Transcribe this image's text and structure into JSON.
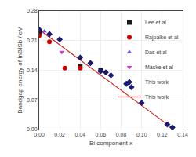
{
  "chart_data": {
    "type": "scatter",
    "xlabel": "Bi component x",
    "ylabel": "Bandgap energy of InBISb / eV",
    "series": [
      {
        "name": "Lee et al",
        "type": "scatter",
        "marker": "square",
        "color": "#1a1a1a",
        "x": [
          0.0,
          0.04,
          0.06
        ],
        "values": [
          0.23,
          0.15,
          0.14
        ]
      },
      {
        "name": "Rajpalke et al",
        "type": "scatter",
        "marker": "circle",
        "color": "#cc0000",
        "x": [
          0.0,
          0.01,
          0.025,
          0.04
        ],
        "values": [
          0.222,
          0.207,
          0.145,
          0.145
        ]
      },
      {
        "name": "Das et al",
        "type": "scatter",
        "marker": "triangle-up",
        "color": "#7755cc",
        "x": [
          0.005,
          0.01
        ],
        "values": [
          0.232,
          0.228
        ]
      },
      {
        "name": "Maske et al",
        "type": "scatter",
        "marker": "triangle-down",
        "color": "#cc44cc",
        "x": [
          0.022
        ],
        "values": [
          0.183
        ]
      },
      {
        "name": "This work",
        "type": "scatter",
        "marker": "diamond",
        "color": "#191970",
        "x": [
          0.0,
          0.01,
          0.02,
          0.04,
          0.05,
          0.06,
          0.065,
          0.07,
          0.085,
          0.09,
          0.1,
          0.125,
          0.13
        ],
        "values": [
          0.236,
          0.225,
          0.213,
          0.17,
          0.157,
          0.138,
          0.135,
          0.128,
          0.108,
          0.1,
          0.063,
          0.012,
          0.005
        ]
      },
      {
        "name": "This work",
        "type": "line",
        "line_style": "solid",
        "color": "#cc2222",
        "x": [
          0.0,
          0.13
        ],
        "values": [
          0.236,
          0.003
        ]
      }
    ],
    "xlim": [
      0.0,
      0.14
    ],
    "ylim": [
      0.0,
      0.28
    ],
    "xticks": [
      {
        "value": 0.0,
        "label": "0.00"
      },
      0.02,
      0.04,
      0.06,
      0.08,
      {
        "value": 0.1,
        "label": "0.10"
      },
      0.12,
      0.14
    ],
    "yticks": [
      {
        "value": 0.0,
        "label": "0.00"
      },
      0.07,
      0.14,
      0.21,
      0.28
    ],
    "legend": "upper right"
  }
}
